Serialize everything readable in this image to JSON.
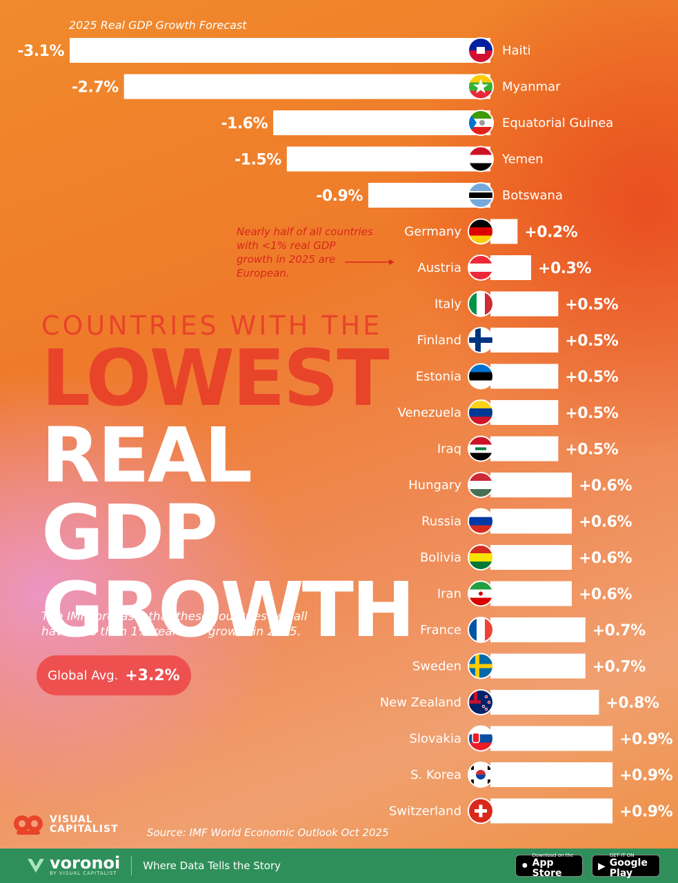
{
  "chart_data": {
    "type": "bar",
    "orientation": "horizontal",
    "title": "2025 Real GDP Growth Forecast",
    "unit": "%",
    "categories": [
      "Haiti",
      "Myanmar",
      "Equatorial Guinea",
      "Yemen",
      "Botswana",
      "Germany",
      "Austria",
      "Italy",
      "Finland",
      "Estonia",
      "Venezuela",
      "Iraq",
      "Hungary",
      "Russia",
      "Bolivia",
      "Iran",
      "France",
      "Sweden",
      "New Zealand",
      "Slovakia",
      "S. Korea",
      "Switzerland"
    ],
    "values": [
      -3.1,
      -2.7,
      -1.6,
      -1.5,
      -0.9,
      0.2,
      0.3,
      0.5,
      0.5,
      0.5,
      0.5,
      0.5,
      0.6,
      0.6,
      0.6,
      0.6,
      0.7,
      0.7,
      0.8,
      0.9,
      0.9,
      0.9
    ],
    "value_labels": [
      "-3.1%",
      "-2.7%",
      "-1.6%",
      "-1.5%",
      "-0.9%",
      "+0.2%",
      "+0.3%",
      "+0.5%",
      "+0.5%",
      "+0.5%",
      "+0.5%",
      "+0.5%",
      "+0.6%",
      "+0.6%",
      "+0.6%",
      "+0.6%",
      "+0.7%",
      "+0.7%",
      "+0.8%",
      "+0.9%",
      "+0.9%",
      "+0.9%"
    ],
    "flag_icons": [
      "haiti-flag-icon",
      "myanmar-flag-icon",
      "equatorial-guinea-flag-icon",
      "yemen-flag-icon",
      "botswana-flag-icon",
      "germany-flag-icon",
      "austria-flag-icon",
      "italy-flag-icon",
      "finland-flag-icon",
      "estonia-flag-icon",
      "venezuela-flag-icon",
      "iraq-flag-icon",
      "hungary-flag-icon",
      "russia-flag-icon",
      "bolivia-flag-icon",
      "iran-flag-icon",
      "france-flag-icon",
      "sweden-flag-icon",
      "new-zealand-flag-icon",
      "slovakia-flag-icon",
      "s-korea-flag-icon",
      "switzerland-flag-icon"
    ],
    "bar_color": "#ffffff",
    "grid": false
  },
  "headline": {
    "line1": "COUNTRIES WITH THE",
    "line2": "LOWEST",
    "line3": "REAL GDP",
    "line4": "GROWTH"
  },
  "annotation": "Nearly half of all countries with <1% real GDP growth in 2025 are European.",
  "description": "The IMF forecasts that these countries will all have less than 1% real GDP growth in 2025.",
  "global_avg": {
    "label": "Global Avg.",
    "value": "+3.2%"
  },
  "brand": {
    "line1": "VISUAL",
    "line2": "CAPITALIST"
  },
  "source": "Source: IMF World Economic Outlook Oct 2025",
  "footer": {
    "logo_word": "voronoi",
    "logo_sub": "BY VISUAL CAPITALIST",
    "tagline": "Where Data Tells the Story",
    "app_store_small": "Download on the",
    "app_store_big": "App Store",
    "google_play_small": "GET IT ON",
    "google_play_big": "Google Play"
  },
  "colors": {
    "accent_red": "#e8442a",
    "pill": "#ee5050",
    "footer_green": "#2f8f5a",
    "bar": "#ffffff"
  }
}
